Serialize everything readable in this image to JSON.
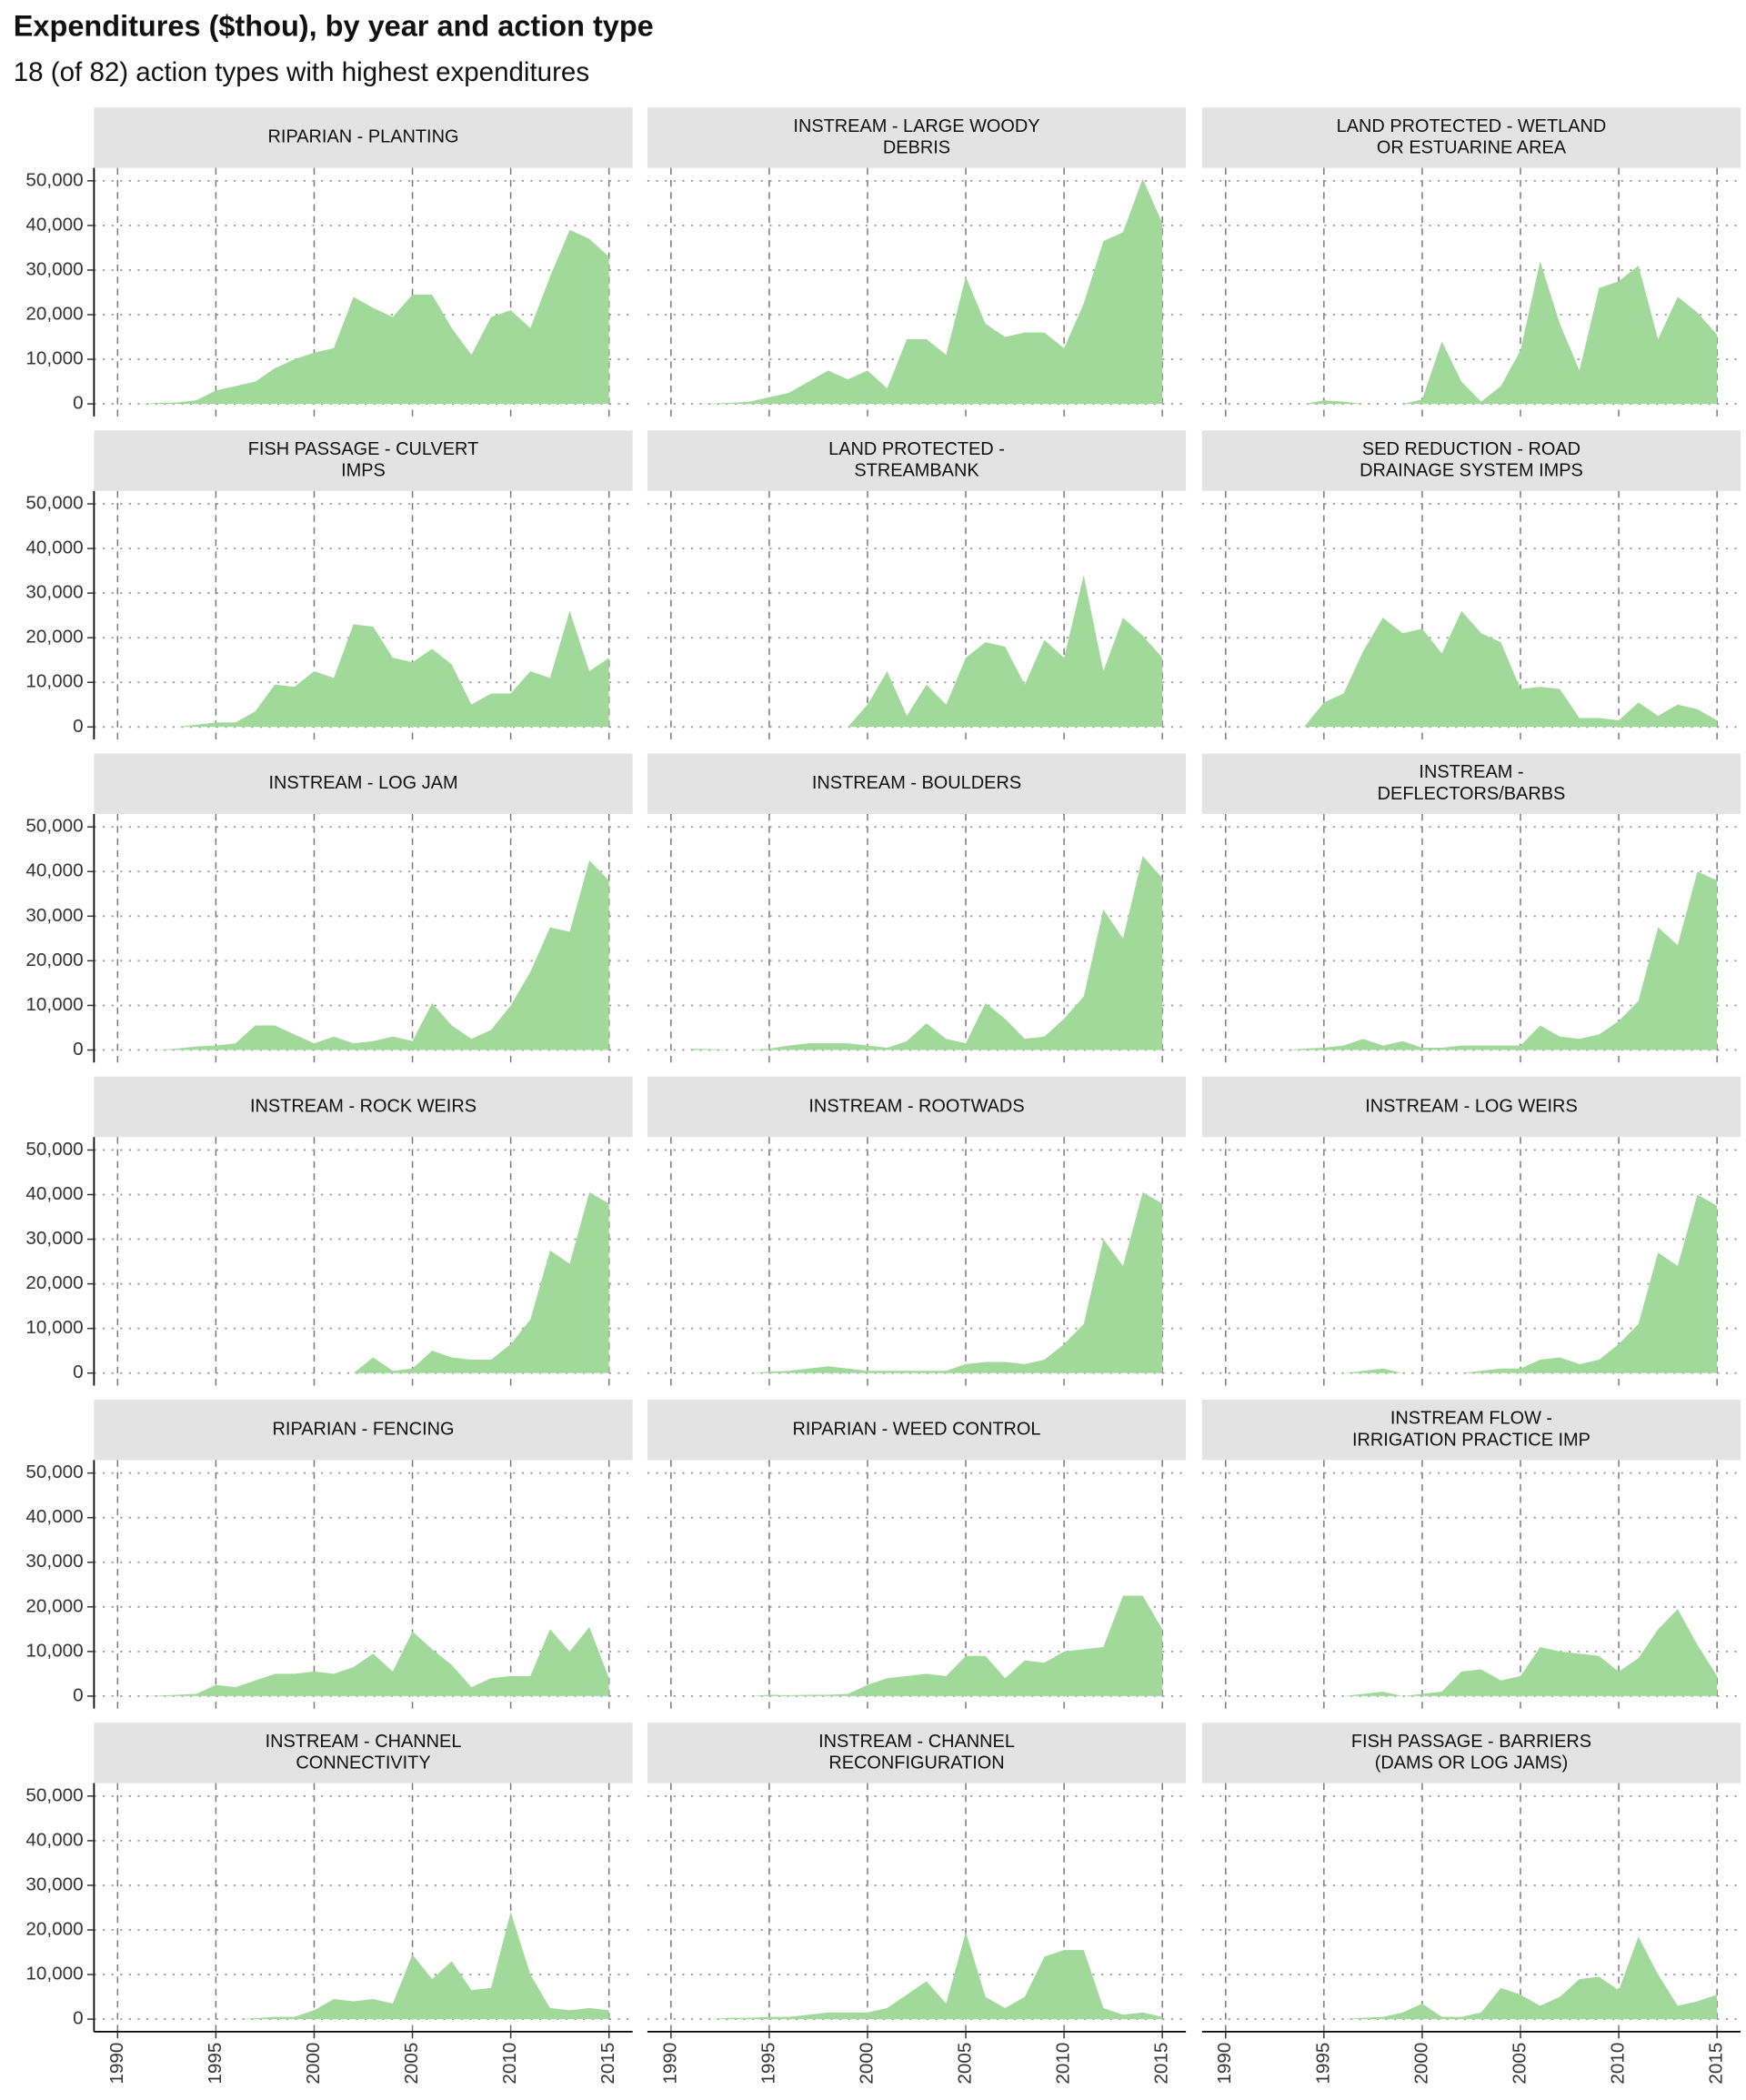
{
  "chart_data": {
    "type": "area",
    "title": "Expenditures ($thou), by year and action type",
    "subtitle": "18 (of 82) action types with highest expenditures",
    "color": "#a1d99b",
    "grid": true,
    "xlim": [
      1988.8,
      2016.2
    ],
    "xticks": [
      1990,
      1995,
      2000,
      2005,
      2010,
      2015
    ],
    "ylim": [
      -2800,
      52900
    ],
    "yticks": [
      0,
      {
        "value": 10000,
        "label": "10,000"
      },
      {
        "value": 20000,
        "label": "20,000"
      },
      {
        "value": 30000,
        "label": "30,000"
      },
      {
        "value": 40000,
        "label": "40,000"
      },
      {
        "value": 50000,
        "label": "50,000"
      }
    ],
    "x": [
      1991,
      1992,
      1993,
      1994,
      1995,
      1996,
      1997,
      1998,
      1999,
      2000,
      2001,
      2002,
      2003,
      2004,
      2005,
      2006,
      2007,
      2008,
      2009,
      2010,
      2011,
      2012,
      2013,
      2014,
      2015
    ],
    "panels": [
      {
        "title": [
          "RIPARIAN - PLANTING"
        ],
        "values": [
          0,
          200,
          300,
          800,
          3000,
          4000,
          5000,
          8000,
          10000,
          11500,
          12500,
          24000,
          21500,
          19500,
          24500,
          24500,
          17000,
          11000,
          19500,
          21000,
          17000,
          28500,
          39000,
          37000,
          33000
        ]
      },
      {
        "title": [
          "INSTREAM - LARGE WOODY",
          "DEBRIS"
        ],
        "values": [
          0,
          100,
          200,
          500,
          1500,
          2500,
          5000,
          7500,
          5500,
          7500,
          3500,
          14500,
          14500,
          11000,
          28500,
          18000,
          15000,
          16000,
          16000,
          12500,
          22500,
          36500,
          38500,
          50500,
          40500
        ]
      },
      {
        "title": [
          "LAND PROTECTED - WETLAND",
          "OR ESTUARINE AREA"
        ],
        "values": [
          0,
          0,
          0,
          0,
          800,
          500,
          0,
          0,
          0,
          1000,
          14000,
          5000,
          500,
          4000,
          12000,
          32000,
          18000,
          7500,
          26000,
          27500,
          31000,
          14500,
          24000,
          20500,
          15500
        ]
      },
      {
        "title": [
          "FISH PASSAGE - CULVERT",
          "IMPS"
        ],
        "values": [
          0,
          0,
          0,
          500,
          1000,
          1000,
          3500,
          9500,
          9000,
          12500,
          11000,
          23000,
          22500,
          15500,
          14500,
          17500,
          14000,
          5000,
          7500,
          7500,
          12500,
          11000,
          26000,
          12500,
          15500
        ]
      },
      {
        "title": [
          "LAND PROTECTED -",
          "STREAMBANK"
        ],
        "values": [
          0,
          0,
          0,
          0,
          0,
          0,
          0,
          0,
          0,
          5000,
          12500,
          2500,
          9500,
          5000,
          15500,
          19000,
          18000,
          9500,
          19500,
          15500,
          34000,
          12500,
          24500,
          20500,
          15500
        ]
      },
      {
        "title": [
          "SED REDUCTION - ROAD",
          "DRAINAGE SYSTEM IMPS"
        ],
        "values": [
          0,
          0,
          0,
          0,
          5500,
          7500,
          17000,
          24500,
          21000,
          22000,
          16500,
          26000,
          21000,
          19000,
          8500,
          9000,
          8500,
          2000,
          2000,
          1500,
          5500,
          2500,
          5000,
          4000,
          1500
        ]
      },
      {
        "title": [
          "INSTREAM - LOG JAM"
        ],
        "values": [
          0,
          0,
          300,
          800,
          1000,
          1500,
          5500,
          5500,
          3500,
          1500,
          3000,
          1500,
          2000,
          3000,
          2000,
          10500,
          5500,
          2500,
          4500,
          10000,
          17500,
          27500,
          26500,
          42500,
          38000
        ]
      },
      {
        "title": [
          "INSTREAM - BOULDERS"
        ],
        "values": [
          300,
          200,
          0,
          0,
          300,
          1000,
          1500,
          1500,
          1500,
          1000,
          500,
          2000,
          6000,
          2500,
          1500,
          10500,
          7000,
          2500,
          3000,
          7000,
          12000,
          31500,
          25000,
          43500,
          38500
        ]
      },
      {
        "title": [
          "INSTREAM -",
          "DEFLECTORS/BARBS"
        ],
        "values": [
          0,
          0,
          0,
          300,
          500,
          1000,
          2500,
          1000,
          2000,
          500,
          500,
          1000,
          1000,
          1000,
          1000,
          5500,
          3000,
          2500,
          3500,
          6500,
          11000,
          27500,
          23500,
          40000,
          38000
        ]
      },
      {
        "title": [
          "INSTREAM - ROCK WEIRS"
        ],
        "values": [
          0,
          0,
          0,
          0,
          0,
          0,
          0,
          0,
          0,
          0,
          0,
          0,
          3500,
          500,
          1000,
          5000,
          3500,
          3000,
          3000,
          6500,
          12000,
          27500,
          24500,
          40500,
          38000
        ]
      },
      {
        "title": [
          "INSTREAM - ROOTWADS"
        ],
        "values": [
          0,
          0,
          0,
          0,
          300,
          500,
          1000,
          1500,
          1000,
          500,
          500,
          500,
          500,
          500,
          2000,
          2500,
          2500,
          2000,
          3000,
          6500,
          11000,
          30000,
          24000,
          40500,
          38000
        ]
      },
      {
        "title": [
          "INSTREAM - LOG WEIRS"
        ],
        "values": [
          0,
          0,
          0,
          0,
          0,
          0,
          500,
          1000,
          0,
          0,
          0,
          0,
          500,
          1000,
          1000,
          3000,
          3500,
          2000,
          3000,
          6500,
          11000,
          27000,
          24000,
          40000,
          37500
        ]
      },
      {
        "title": [
          "RIPARIAN - FENCING"
        ],
        "values": [
          0,
          100,
          300,
          500,
          2500,
          2000,
          3500,
          5000,
          5000,
          5500,
          5000,
          6500,
          9500,
          5500,
          14500,
          10500,
          7000,
          2000,
          4000,
          4500,
          4500,
          15000,
          10000,
          15500,
          4000
        ]
      },
      {
        "title": [
          "RIPARIAN - WEED CONTROL"
        ],
        "values": [
          0,
          0,
          0,
          0,
          300,
          200,
          300,
          300,
          500,
          2500,
          4000,
          4500,
          5000,
          4500,
          9000,
          9000,
          4000,
          8000,
          7500,
          10000,
          10500,
          11000,
          22500,
          22500,
          15000
        ]
      },
      {
        "title": [
          "INSTREAM FLOW -",
          "IRRIGATION PRACTICE IMP"
        ],
        "values": [
          0,
          0,
          0,
          0,
          0,
          0,
          500,
          1000,
          0,
          500,
          1000,
          5500,
          6000,
          3500,
          4500,
          11000,
          10000,
          9500,
          9000,
          5500,
          8500,
          15000,
          19500,
          11500,
          4500
        ]
      },
      {
        "title": [
          "INSTREAM - CHANNEL",
          "CONNECTIVITY"
        ],
        "values": [
          0,
          0,
          0,
          0,
          0,
          0,
          200,
          500,
          500,
          2000,
          4500,
          4000,
          4500,
          3500,
          14500,
          9000,
          13000,
          6500,
          7000,
          24000,
          10000,
          2500,
          2000,
          2500,
          2000
        ]
      },
      {
        "title": [
          "INSTREAM - CHANNEL",
          "RECONFIGURATION"
        ],
        "values": [
          0,
          0,
          300,
          300,
          500,
          500,
          1000,
          1500,
          1500,
          1500,
          2500,
          5500,
          8500,
          3500,
          19500,
          5000,
          2500,
          5000,
          14000,
          15500,
          15500,
          2500,
          1000,
          1500,
          500
        ]
      },
      {
        "title": [
          "FISH PASSAGE - BARRIERS",
          "(DAMS OR LOG JAMS)"
        ],
        "values": [
          0,
          0,
          0,
          0,
          0,
          0,
          300,
          500,
          1500,
          3500,
          500,
          500,
          1500,
          7000,
          5500,
          3000,
          5000,
          9000,
          9500,
          6500,
          18500,
          10000,
          3000,
          4000,
          5500
        ]
      }
    ]
  }
}
